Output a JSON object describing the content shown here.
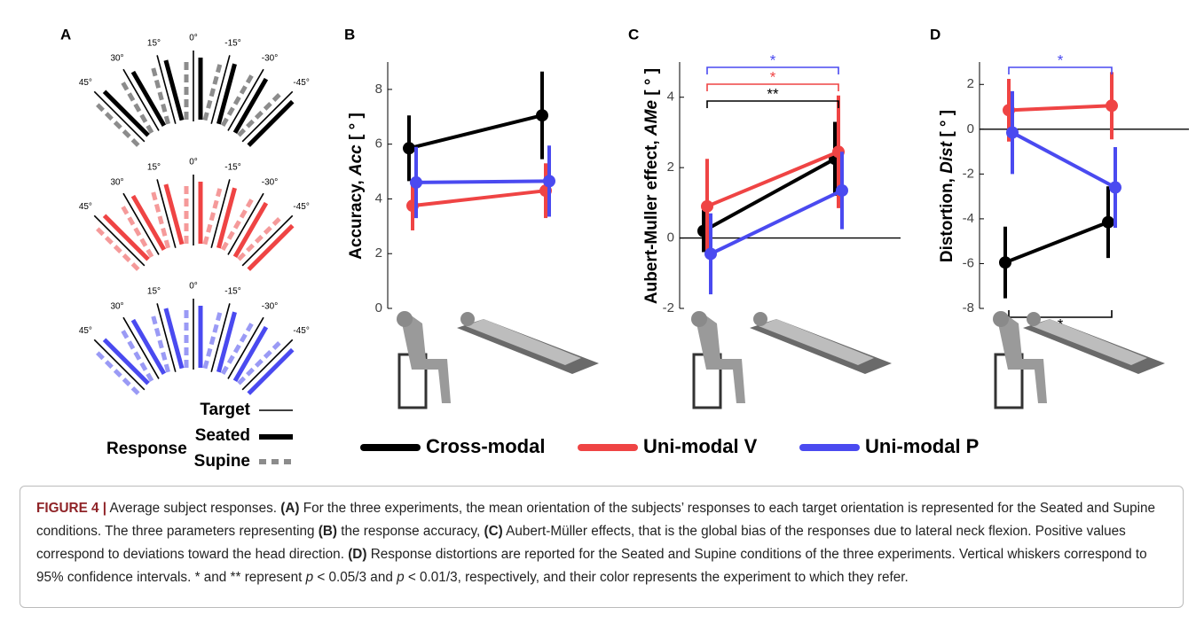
{
  "panel_labels": [
    "A",
    "B",
    "C",
    "D"
  ],
  "panel_a": {
    "angles": [
      {
        "value": 45,
        "label": "45°"
      },
      {
        "value": 30,
        "label": "30°"
      },
      {
        "value": 15,
        "label": "15°"
      },
      {
        "value": 0,
        "label": "0°"
      },
      {
        "value": -15,
        "label": "-15°"
      },
      {
        "value": -30,
        "label": "-30°"
      },
      {
        "value": -45,
        "label": "-45°"
      }
    ],
    "seated_colors": [
      "#000000",
      "#ef4444",
      "#4a4af0"
    ],
    "supine_colors": [
      "#8c8c8c",
      "#f59a9a",
      "#9a9af5"
    ],
    "target": "Target",
    "response": "Response",
    "seated": "Seated",
    "supine": "Supine"
  },
  "chart_data": [
    {
      "type": "line",
      "ylabel": [
        "Accuracy, ",
        "Acc",
        " [ ° ]"
      ],
      "categories": [
        null,
        null
      ],
      "ylim": [
        0,
        9
      ],
      "yticks": [
        0,
        2,
        4,
        6,
        8
      ],
      "zeroline": false,
      "series": [
        {
          "name": "Cross-modal",
          "color": "#000000",
          "values": [
            5.85,
            7.05
          ],
          "errors": [
            1.2,
            1.6
          ]
        },
        {
          "name": "Uni-modal V",
          "color": "#ef4444",
          "values": [
            3.75,
            4.3
          ],
          "errors": [
            0.9,
            1.0
          ]
        },
        {
          "name": "Uni-modal P",
          "color": "#4a4af0",
          "values": [
            4.6,
            4.65
          ],
          "errors": [
            1.3,
            1.3
          ]
        }
      ],
      "brackets": []
    },
    {
      "type": "line",
      "ylabel": [
        "Aubert-Muller effect, ",
        "AMe",
        " [ ° ]"
      ],
      "categories": [
        null,
        null
      ],
      "ylim": [
        -2,
        5
      ],
      "yticks": [
        -2,
        0,
        2,
        4
      ],
      "zeroline": true,
      "series": [
        {
          "name": "Cross-modal",
          "color": "#000000",
          "values": [
            0.2,
            2.25
          ],
          "errors": [
            0.6,
            1.05
          ]
        },
        {
          "name": "Uni-modal V",
          "color": "#ef4444",
          "values": [
            0.9,
            2.45
          ],
          "errors": [
            1.35,
            1.6
          ]
        },
        {
          "name": "Uni-modal P",
          "color": "#4a4af0",
          "values": [
            -0.45,
            1.35
          ],
          "errors": [
            1.15,
            1.1
          ]
        }
      ],
      "brackets": [
        {
          "label": "*",
          "color": "#4a4af0",
          "side": "top"
        },
        {
          "label": "*",
          "color": "#ef4444",
          "side": "top"
        },
        {
          "label": "**",
          "color": "#000000",
          "side": "top"
        }
      ]
    },
    {
      "type": "line",
      "ylabel": [
        "Distortion, ",
        "Dist",
        " [ ° ]"
      ],
      "categories": [
        null,
        null
      ],
      "ylim": [
        -8,
        3
      ],
      "yticks": [
        -8,
        -6,
        -4,
        -2,
        0,
        2
      ],
      "zeroline": true,
      "series": [
        {
          "name": "Cross-modal",
          "color": "#000000",
          "values": [
            -5.95,
            -4.15
          ],
          "errors": [
            1.6,
            1.6
          ]
        },
        {
          "name": "Uni-modal V",
          "color": "#ef4444",
          "values": [
            0.85,
            1.05
          ],
          "errors": [
            1.4,
            1.5
          ]
        },
        {
          "name": "Uni-modal P",
          "color": "#4a4af0",
          "values": [
            -0.15,
            -2.6
          ],
          "errors": [
            1.85,
            1.8
          ]
        }
      ],
      "brackets": [
        {
          "label": "*",
          "color": "#4a4af0",
          "side": "top"
        },
        {
          "label": "*",
          "color": "#000000",
          "side": "bottom"
        }
      ]
    }
  ],
  "caption": [
    {
      "text": "FIGURE 4 |",
      "style": "fig"
    },
    {
      "text": " Average subject responses. ",
      "style": "n"
    },
    {
      "text": "(A)",
      "style": "b"
    },
    {
      "text": " For the three experiments, the mean orientation of the subjects’ responses to each target orientation is represented for the Seated and Supine conditions. The three parameters representing ",
      "style": "n"
    },
    {
      "text": "(B)",
      "style": "b"
    },
    {
      "text": " the response accuracy, ",
      "style": "n"
    },
    {
      "text": "(C)",
      "style": "b"
    },
    {
      "text": " Aubert-Müller effects, that is the global bias of the responses due to lateral neck flexion. Positive values correspond to deviations toward the head direction. ",
      "style": "n"
    },
    {
      "text": "(D)",
      "style": "b"
    },
    {
      "text": " Response distortions are reported for the Seated and Supine conditions of the three experiments. Vertical whiskers correspond to 95% confidence intervals. * and ** represent ",
      "style": "n"
    },
    {
      "text": "p",
      "style": "i"
    },
    {
      "text": " < 0.05/3 and ",
      "style": "n"
    },
    {
      "text": "p",
      "style": "i"
    },
    {
      "text": " < 0.01/3, respectively, and their color represents the experiment to which they refer.",
      "style": "n"
    }
  ]
}
